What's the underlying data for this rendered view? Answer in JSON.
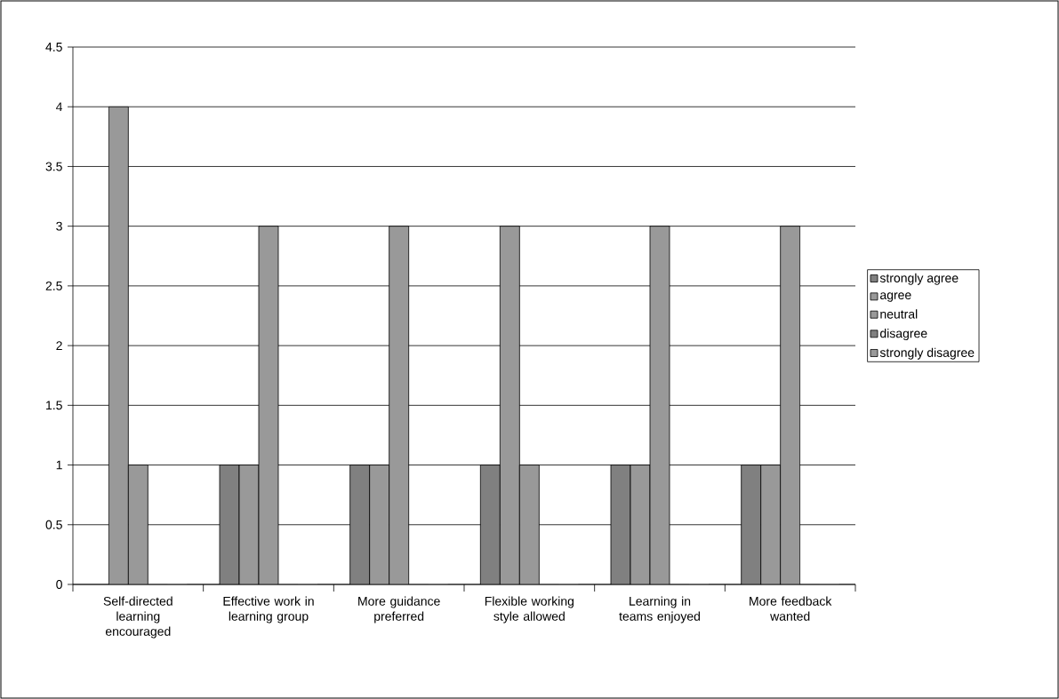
{
  "chart_data": {
    "type": "bar",
    "categories": [
      "Self-directed learning encouraged",
      "Effective work in learning group",
      "More guidance preferred",
      "Flexible working style allowed",
      "Learning in teams enjoyed",
      "More feedback wanted"
    ],
    "series": [
      {
        "name": "strongly agree",
        "color": "#808080",
        "values": [
          0,
          1,
          1,
          1,
          1,
          1
        ]
      },
      {
        "name": "agree",
        "color": "#999999",
        "values": [
          4,
          1,
          1,
          3,
          1,
          1
        ]
      },
      {
        "name": "neutral",
        "color": "#999999",
        "values": [
          1,
          3,
          3,
          1,
          3,
          3
        ]
      },
      {
        "name": "disagree",
        "color": "#808080",
        "values": [
          0,
          0,
          0,
          0,
          0,
          0
        ]
      },
      {
        "name": "strongly disagree",
        "color": "#999999",
        "values": [
          0,
          0,
          0,
          0,
          0,
          0
        ]
      }
    ],
    "ylim": [
      0,
      4.5
    ],
    "yticks": [
      0,
      0.5,
      1,
      1.5,
      2,
      2.5,
      3,
      3.5,
      4,
      4.5
    ],
    "grid": "y",
    "legend": "right"
  }
}
